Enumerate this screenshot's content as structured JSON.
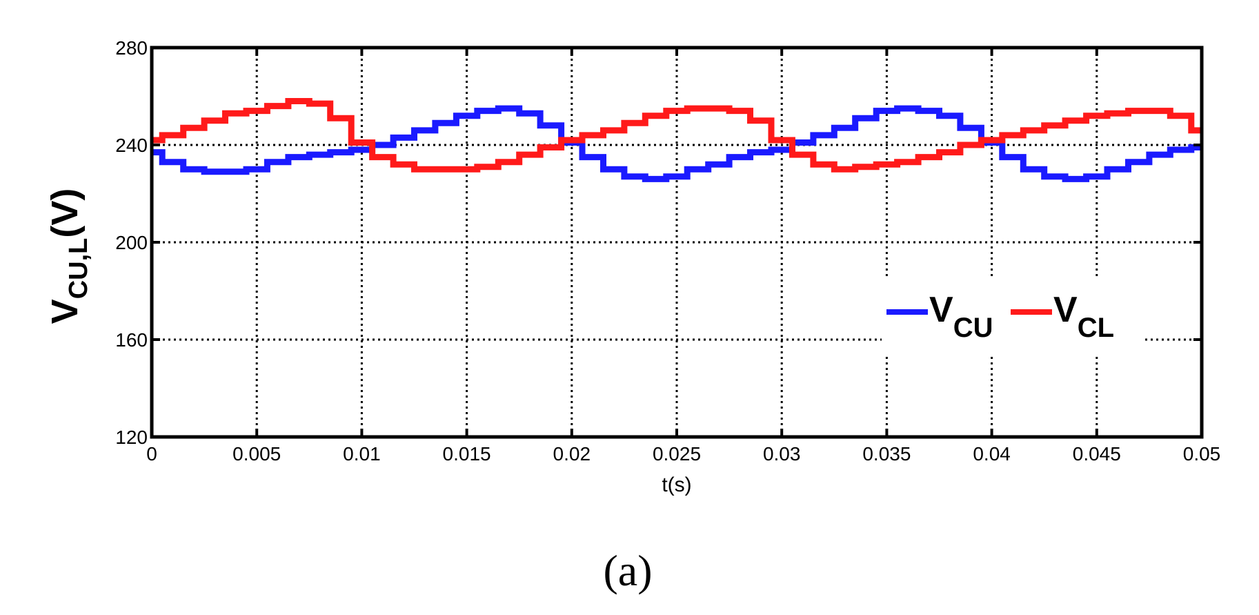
{
  "chart_data": {
    "type": "line",
    "title": "",
    "xlabel": "t(s)",
    "ylabel": {
      "main": "V",
      "sub": "CU,L",
      "unit": "(V)"
    },
    "xlim": [
      0,
      0.05
    ],
    "ylim": [
      120,
      280
    ],
    "x_ticks": [
      0,
      0.005,
      0.01,
      0.015,
      0.02,
      0.025,
      0.03,
      0.035,
      0.04,
      0.045,
      0.05
    ],
    "x_tick_labels": [
      "0",
      "0.005",
      "0.01",
      "0.015",
      "0.02",
      "0.025",
      "0.03",
      "0.035",
      "0.04",
      "0.045",
      "0.05"
    ],
    "y_ticks": [
      120,
      160,
      200,
      240,
      280
    ],
    "y_tick_labels": [
      "120",
      "160",
      "200",
      "240",
      "280"
    ],
    "grid": true,
    "legend_position": "right",
    "caption": "(a)",
    "series": [
      {
        "name": "V_CU",
        "legend_main": "V",
        "legend_sub": "CU",
        "color": "#1a1aff",
        "x": [
          0,
          0.001,
          0.002,
          0.003,
          0.004,
          0.005,
          0.006,
          0.007,
          0.008,
          0.009,
          0.01,
          0.011,
          0.012,
          0.013,
          0.014,
          0.015,
          0.016,
          0.017,
          0.018,
          0.019,
          0.02,
          0.021,
          0.022,
          0.023,
          0.024,
          0.025,
          0.026,
          0.027,
          0.028,
          0.029,
          0.03,
          0.031,
          0.032,
          0.033,
          0.034,
          0.035,
          0.036,
          0.037,
          0.038,
          0.039,
          0.04,
          0.041,
          0.042,
          0.043,
          0.044,
          0.045,
          0.046,
          0.047,
          0.048,
          0.049,
          0.05
        ],
        "values": [
          237,
          233,
          230,
          229,
          229,
          230,
          233,
          235,
          236,
          237,
          238,
          240,
          243,
          246,
          249,
          252,
          254,
          255,
          253,
          248,
          241,
          235,
          230,
          227,
          226,
          227,
          230,
          232,
          235,
          237,
          238,
          241,
          244,
          247,
          251,
          254,
          255,
          254,
          252,
          247,
          241,
          235,
          230,
          227,
          226,
          227,
          230,
          233,
          236,
          238,
          239
        ]
      },
      {
        "name": "V_CL",
        "legend_main": "V",
        "legend_sub": "CL",
        "color": "#ff1a1a",
        "x": [
          0,
          0.001,
          0.002,
          0.003,
          0.004,
          0.005,
          0.006,
          0.007,
          0.008,
          0.009,
          0.01,
          0.011,
          0.012,
          0.013,
          0.014,
          0.015,
          0.016,
          0.017,
          0.018,
          0.019,
          0.02,
          0.021,
          0.022,
          0.023,
          0.024,
          0.025,
          0.026,
          0.027,
          0.028,
          0.029,
          0.03,
          0.031,
          0.032,
          0.033,
          0.034,
          0.035,
          0.036,
          0.037,
          0.038,
          0.039,
          0.04,
          0.041,
          0.042,
          0.043,
          0.044,
          0.045,
          0.046,
          0.047,
          0.048,
          0.049,
          0.05
        ],
        "values": [
          242,
          244,
          247,
          250,
          253,
          254,
          256,
          258,
          257,
          251,
          241,
          235,
          232,
          230,
          230,
          230,
          231,
          233,
          236,
          239,
          242,
          244,
          246,
          249,
          252,
          254,
          255,
          255,
          254,
          250,
          242,
          236,
          232,
          230,
          231,
          232,
          233,
          235,
          237,
          240,
          242,
          244,
          246,
          248,
          250,
          252,
          253,
          254,
          254,
          252,
          246
        ]
      }
    ]
  }
}
